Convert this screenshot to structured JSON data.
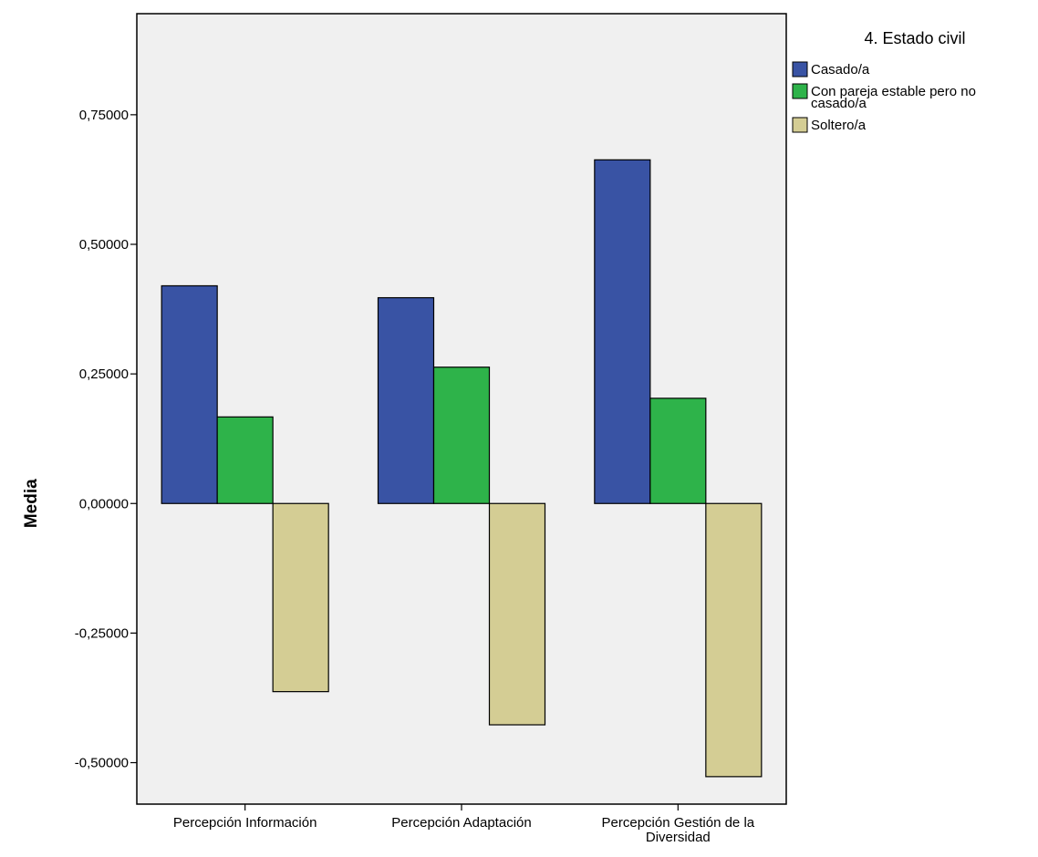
{
  "chart_data": {
    "type": "bar",
    "ylabel": "Media",
    "xlabel": "",
    "ylim": [
      -0.58,
      0.945
    ],
    "yticks": [
      0.75,
      0.5,
      0.25,
      0.0,
      -0.25,
      -0.5
    ],
    "ytick_labels": [
      "0,75000",
      "0,50000",
      "0,25000",
      "0,00000",
      "-0,25000",
      "-0,50000"
    ],
    "categories": [
      [
        "Percepción Información"
      ],
      [
        "Percepción Adaptación"
      ],
      [
        "Percepción Gestión de la",
        "Diversidad"
      ]
    ],
    "legend": {
      "title": "4. Estado civil",
      "position": "top-right"
    },
    "series": [
      {
        "name": [
          "Casado/a"
        ],
        "color": "#3953a4",
        "values": [
          0.42,
          0.397,
          0.663
        ]
      },
      {
        "name": [
          "Con pareja estable pero no",
          "casado/a"
        ],
        "color": "#2eb34a",
        "values": [
          0.167,
          0.263,
          0.203
        ]
      },
      {
        "name": [
          "Soltero/a"
        ],
        "color": "#d4cd94",
        "values": [
          -0.363,
          -0.427,
          -0.527
        ]
      }
    ],
    "colors": {
      "plot_background": "#f0f0f0",
      "bar_stroke": "#000000"
    }
  }
}
